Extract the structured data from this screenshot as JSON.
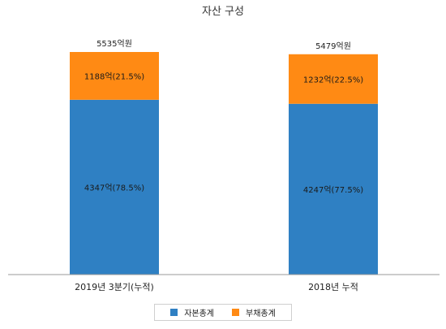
{
  "chart_data": {
    "type": "bar",
    "stacked": true,
    "title": "자산 구성",
    "categories": [
      "2019년 3분기(누적)",
      "2018년 누적"
    ],
    "series": [
      {
        "name": "자본총계",
        "color": "#2f80c3",
        "values": [
          4347,
          4247
        ],
        "labels": [
          "4347억(78.5%)",
          "4247억(77.5%)"
        ]
      },
      {
        "name": "부채총계",
        "color": "#ff8a14",
        "values": [
          1188,
          1232
        ],
        "labels": [
          "1188억(21.5%)",
          "1232억(22.5%)"
        ]
      }
    ],
    "totals": [
      5535,
      5479
    ],
    "total_labels": [
      "5535억원",
      "5479억원"
    ],
    "ylim": [
      0,
      5535
    ],
    "grid": false,
    "legend_position": "bottom"
  }
}
